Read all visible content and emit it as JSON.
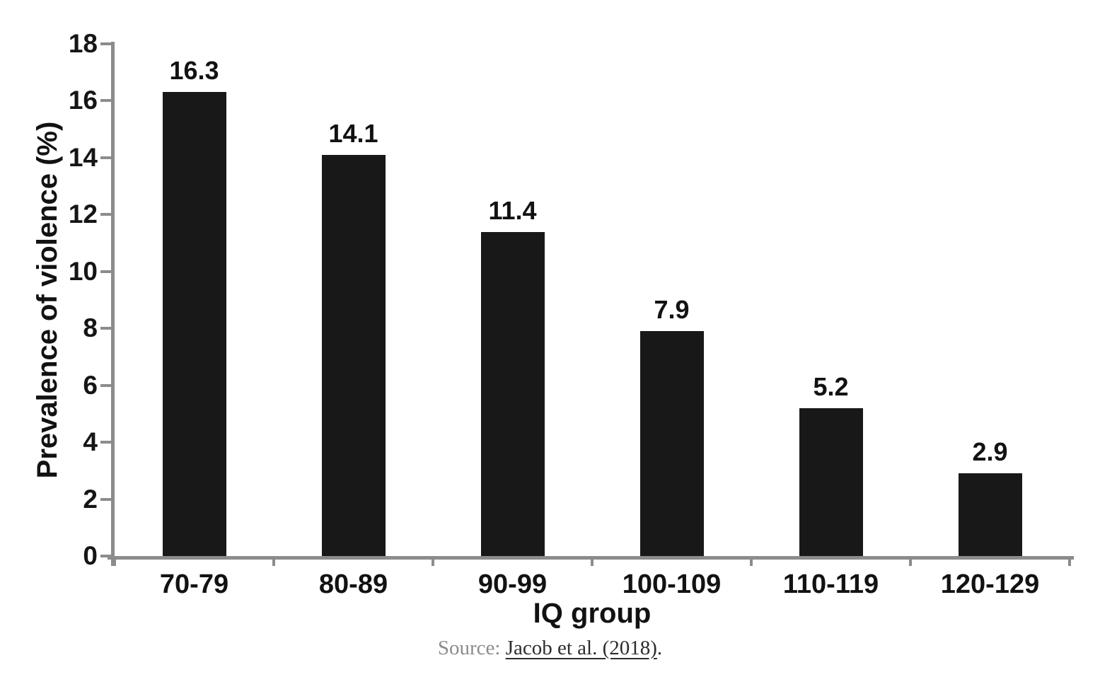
{
  "chart_data": {
    "type": "bar",
    "title": "",
    "categories": [
      "70-79",
      "80-89",
      "90-99",
      "100-109",
      "110-119",
      "120-129"
    ],
    "values": [
      16.3,
      14.1,
      11.4,
      7.9,
      5.2,
      2.9
    ],
    "value_labels": [
      "16.3",
      "14.1",
      "11.4",
      "7.9",
      "5.2",
      "2.9"
    ],
    "xlabel": "IQ group",
    "ylabel": "Prevalence of violence (%)",
    "ylim": [
      0,
      18
    ],
    "y_ticks": [
      0,
      2,
      4,
      6,
      8,
      10,
      12,
      14,
      16,
      18
    ],
    "grid": false,
    "legend_position": "none",
    "bar_color": "#181818",
    "axis_color": "#8c8c8c",
    "label_color": "#121212"
  },
  "source": {
    "prefix": "Source: ",
    "link_text": "Jacob et al. (2018)",
    "suffix": "."
  }
}
